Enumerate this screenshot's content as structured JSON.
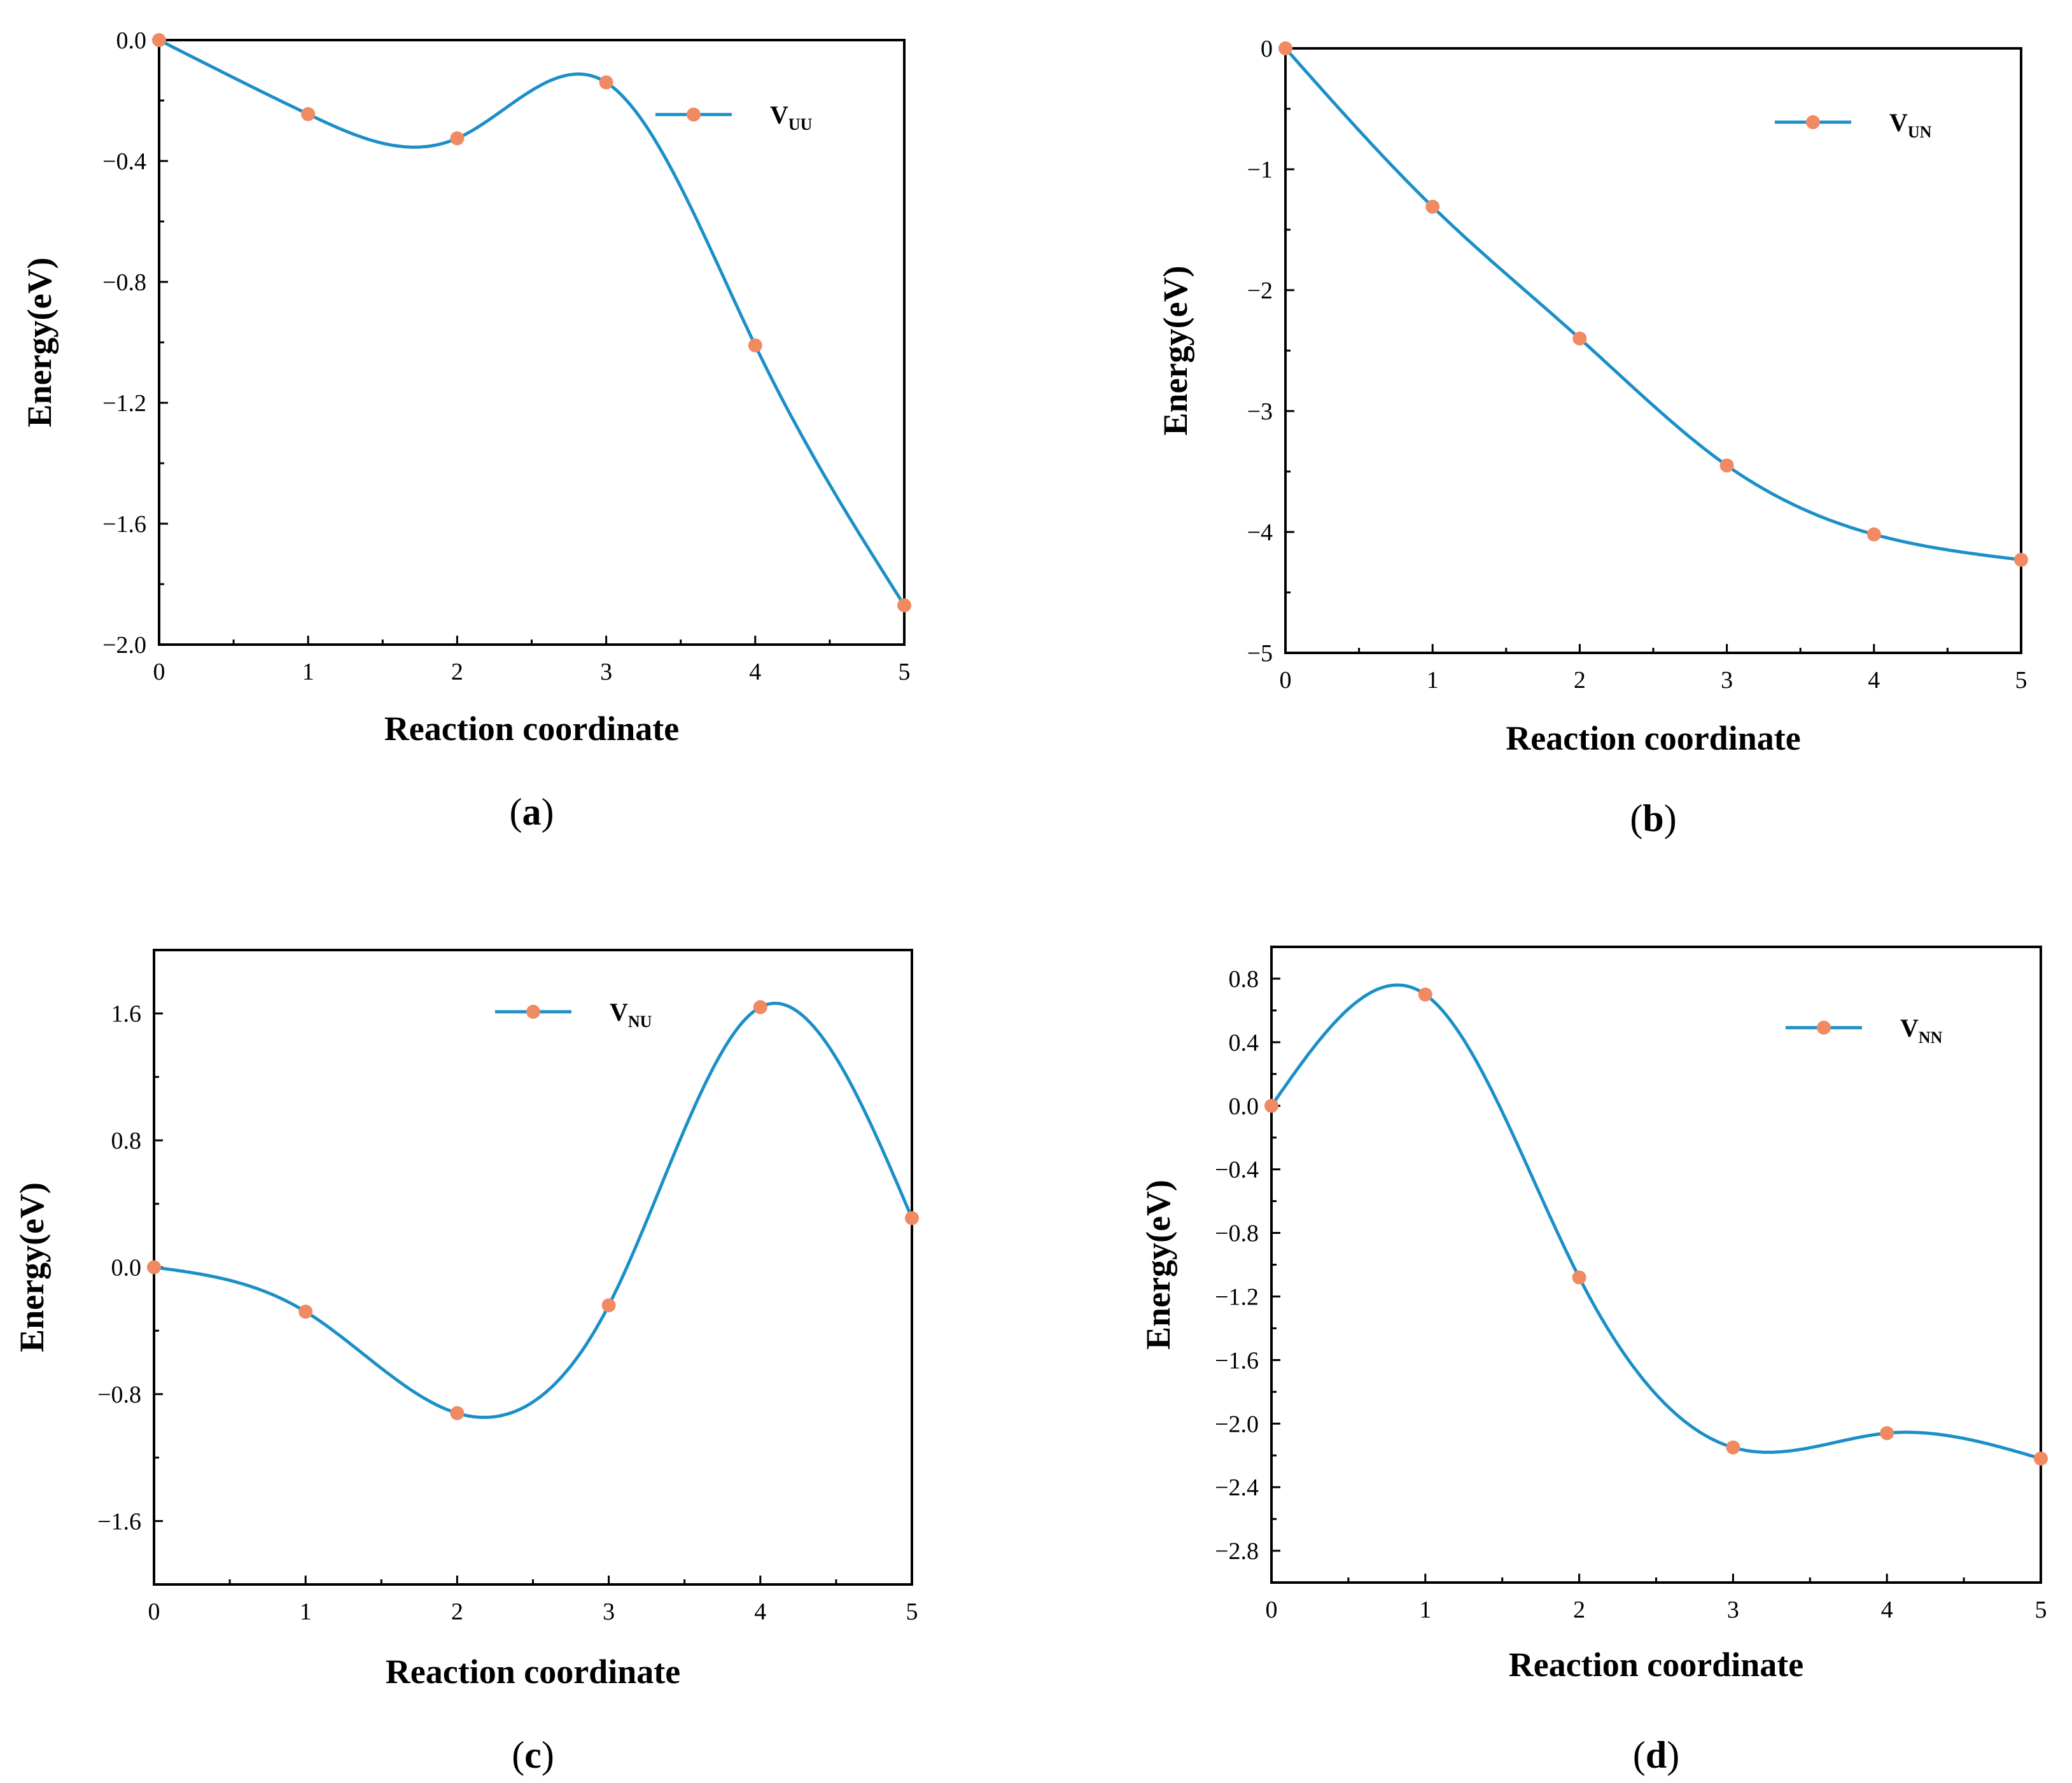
{
  "colors": {
    "line": "#1b8fc7",
    "marker": "#f08a62",
    "axis": "#000000"
  },
  "chart_data": [
    {
      "type": "line",
      "panel": "(a)",
      "panel_letter": "a",
      "xlabel": "Reaction coordinate",
      "ylabel": "Energy(eV)",
      "x": [
        0,
        1,
        2,
        3,
        4,
        5
      ],
      "series": [
        {
          "name": "V_UU",
          "legend_main": "V",
          "legend_sub": "UU",
          "values": [
            0.0,
            -0.245,
            -0.325,
            -0.14,
            -1.01,
            -1.87
          ]
        }
      ],
      "xlim": [
        0,
        5
      ],
      "ylim": [
        -2.0,
        0.0
      ],
      "xticks": [
        0,
        1,
        2,
        3,
        4,
        5
      ],
      "yticks": [
        0.0,
        -0.4,
        -0.8,
        -1.2,
        -1.6,
        -2.0
      ],
      "ytick_labels": [
        "0.0",
        "−0.4",
        "−0.8",
        "−1.2",
        "−1.6",
        "−2.0"
      ],
      "legend": "top-right"
    },
    {
      "type": "line",
      "panel": "(b)",
      "panel_letter": "b",
      "xlabel": "Reaction coordinate",
      "ylabel": "Energy(eV)",
      "x": [
        0,
        1,
        2,
        3,
        4,
        5
      ],
      "series": [
        {
          "name": "V_UN",
          "legend_main": "V",
          "legend_sub": "UN",
          "values": [
            0.0,
            -1.31,
            -2.4,
            -3.45,
            -4.02,
            -4.23
          ]
        }
      ],
      "xlim": [
        0,
        5
      ],
      "ylim": [
        -5,
        0
      ],
      "xticks": [
        0,
        1,
        2,
        3,
        4,
        5
      ],
      "yticks": [
        0,
        -1,
        -2,
        -3,
        -4,
        -5
      ],
      "ytick_labels": [
        "0",
        "−1",
        "−2",
        "−3",
        "−4",
        "−5"
      ],
      "legend": "top-right"
    },
    {
      "type": "line",
      "panel": "(c)",
      "panel_letter": "c",
      "xlabel": "Reaction coordinate",
      "ylabel": "Energy(eV)",
      "x": [
        0,
        1,
        2,
        3,
        4,
        5
      ],
      "series": [
        {
          "name": "V_NU",
          "legend_main": "V",
          "legend_sub": "NU",
          "values": [
            0.0,
            -0.28,
            -0.92,
            -0.24,
            1.64,
            0.31
          ]
        }
      ],
      "xlim": [
        0,
        5
      ],
      "ylim": [
        -2.0,
        2.0
      ],
      "xticks": [
        0,
        1,
        2,
        3,
        4,
        5
      ],
      "yticks": [
        1.6,
        0.8,
        0.0,
        -0.8,
        -1.6
      ],
      "ytick_labels": [
        "1.6",
        "0.8",
        "0.0",
        "−0.8",
        "−1.6"
      ],
      "legend": "top-right"
    },
    {
      "type": "line",
      "panel": "(d)",
      "panel_letter": "d",
      "xlabel": "Reaction coordinate",
      "ylabel": "Energy(eV)",
      "x": [
        0,
        1,
        2,
        3,
        4,
        5
      ],
      "series": [
        {
          "name": "V_NN",
          "legend_main": "V",
          "legend_sub": "NN",
          "values": [
            0.0,
            0.7,
            -1.08,
            -2.15,
            -2.06,
            -2.22
          ]
        }
      ],
      "xlim": [
        0,
        5
      ],
      "ylim": [
        -3.0,
        1.0
      ],
      "xticks": [
        0,
        1,
        2,
        3,
        4,
        5
      ],
      "yticks": [
        0.8,
        0.4,
        0.0,
        -0.4,
        -0.8,
        -1.2,
        -1.6,
        -2.0,
        -2.4,
        -2.8
      ],
      "ytick_labels": [
        "0.8",
        "0.4",
        "0.0",
        "−0.4",
        "−0.8",
        "−1.2",
        "−1.6",
        "−2.0",
        "−2.4",
        "−2.8"
      ],
      "legend": "top-right"
    }
  ]
}
